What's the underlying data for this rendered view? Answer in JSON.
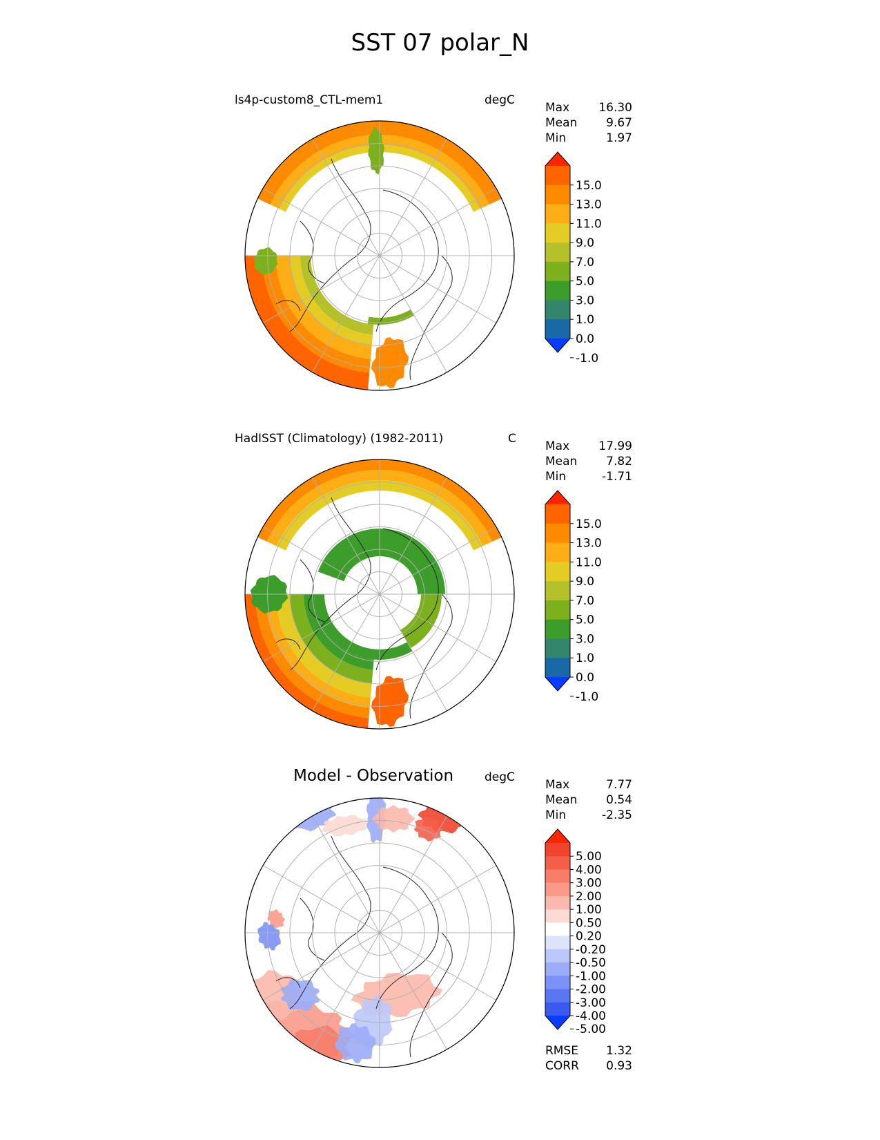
{
  "title": "SST 07 polar_N",
  "panels": [
    {
      "title": "ls4p-custom8_CTL-mem1",
      "units": "degC",
      "stats": [
        {
          "label": "Max",
          "value": "16.30"
        },
        {
          "label": "Mean",
          "value": "9.67"
        },
        {
          "label": "Min",
          "value": "1.97"
        }
      ],
      "colorbar": {
        "ticks": [
          "15.0",
          "13.0",
          "11.0",
          "9.0",
          "7.0",
          "5.0",
          "3.0",
          "1.0",
          "0.0",
          "-1.0"
        ],
        "colors": [
          "#fe2500",
          "#fe6400",
          "#fe8a00",
          "#fdae14",
          "#e5cc25",
          "#b4c12a",
          "#7cb11d",
          "#3d9d2b",
          "#33856b",
          "#1969a6",
          "#0a3cfe"
        ]
      }
    },
    {
      "title": "HadISST (Climatology) (1982-2011)",
      "units": "C",
      "stats": [
        {
          "label": "Max",
          "value": "17.99"
        },
        {
          "label": "Mean",
          "value": "7.82"
        },
        {
          "label": "Min",
          "value": "-1.71"
        }
      ],
      "colorbar": {
        "ticks": [
          "15.0",
          "13.0",
          "11.0",
          "9.0",
          "7.0",
          "5.0",
          "3.0",
          "1.0",
          "0.0",
          "-1.0"
        ],
        "colors": [
          "#fe2500",
          "#fe6400",
          "#fe8a00",
          "#fdae14",
          "#e5cc25",
          "#b4c12a",
          "#7cb11d",
          "#3d9d2b",
          "#33856b",
          "#1969a6",
          "#0a3cfe"
        ]
      }
    },
    {
      "title": "Model - Observation",
      "units": "degC",
      "stats": [
        {
          "label": "Max",
          "value": "7.77"
        },
        {
          "label": "Mean",
          "value": "0.54"
        },
        {
          "label": "Min",
          "value": "-2.35"
        }
      ],
      "metrics": [
        {
          "label": "RMSE",
          "value": "1.32"
        },
        {
          "label": "CORR",
          "value": "0.93"
        }
      ],
      "colorbar": {
        "ticks": [
          "5.00",
          "4.00",
          "3.00",
          "2.00",
          "1.00",
          "0.50",
          "0.20",
          "-0.20",
          "-0.50",
          "-1.00",
          "-2.00",
          "-3.00",
          "-4.00",
          "-5.00"
        ],
        "colors": [
          "#fe2500",
          "#f2442d",
          "#f45f4a",
          "#f77d69",
          "#f99a89",
          "#fbb8ac",
          "#fddad3",
          "#ffffff",
          "#dde3fb",
          "#bcc8fa",
          "#9bacf8",
          "#7b91f5",
          "#5b76f2",
          "#3a5af0",
          "#0a3cfe"
        ]
      }
    }
  ],
  "chart_data": [
    {
      "type": "heatmap",
      "title": "ls4p-custom8_CTL-mem1",
      "units": "degC",
      "projection": "north polar stereographic",
      "levels": [
        -1.0,
        0.0,
        1.0,
        3.0,
        5.0,
        7.0,
        9.0,
        11.0,
        13.0,
        15.0
      ],
      "max": 16.3,
      "mean": 9.67,
      "min": 1.97
    },
    {
      "type": "heatmap",
      "title": "HadISST (Climatology) (1982-2011)",
      "units": "C",
      "projection": "north polar stereographic",
      "levels": [
        -1.0,
        0.0,
        1.0,
        3.0,
        5.0,
        7.0,
        9.0,
        11.0,
        13.0,
        15.0
      ],
      "max": 17.99,
      "mean": 7.82,
      "min": -1.71
    },
    {
      "type": "heatmap",
      "title": "Model - Observation",
      "units": "degC",
      "projection": "north polar stereographic",
      "levels": [
        -5.0,
        -4.0,
        -3.0,
        -2.0,
        -1.0,
        -0.5,
        -0.2,
        0.2,
        0.5,
        1.0,
        2.0,
        3.0,
        4.0,
        5.0
      ],
      "max": 7.77,
      "mean": 0.54,
      "min": -2.35,
      "rmse": 1.32,
      "corr": 0.93
    }
  ]
}
